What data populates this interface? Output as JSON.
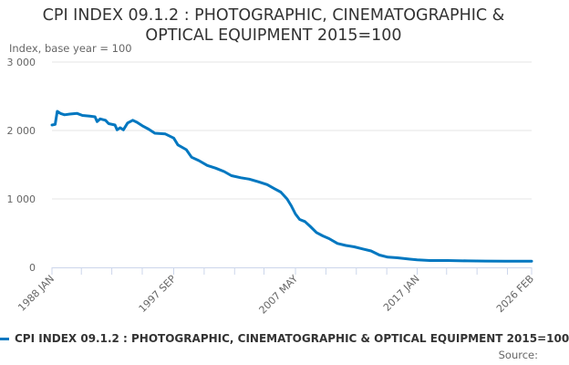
{
  "title_lines": [
    "CPI INDEX 09.1.2 : PHOTOGRAPHIC, CINEMATOGRAPHIC &",
    "OPTICAL EQUIPMENT 2015=100"
  ],
  "colors": {
    "series": "#0077c0",
    "gridline": "#e6e6e6",
    "axis": "#ccd6eb",
    "text": "#333333",
    "muted": "#666666"
  },
  "legend_label": "CPI INDEX 09.1.2 : PHOTOGRAPHIC, CINEMATOGRAPHIC & OPTICAL EQUIPMENT 2015=100",
  "source_label": "Source:",
  "chart_data": {
    "type": "line",
    "title": "CPI INDEX 09.1.2 : PHOTOGRAPHIC, CINEMATOGRAPHIC & OPTICAL EQUIPMENT 2015=100",
    "ylabel": "Index, base year = 100",
    "xlabel": "",
    "ylim": [
      0,
      3000
    ],
    "yticks": [
      0,
      1000,
      2000,
      3000
    ],
    "ytick_labels": [
      "0",
      "1 000",
      "2 000",
      "3 000"
    ],
    "xlim": [
      "1988-01",
      "2026-02"
    ],
    "xtick_labels": [
      "1988 JAN",
      "1997 SEP",
      "2007 MAY",
      "2017 JAN",
      "2026 FEB"
    ],
    "xtick_values": [
      "1988-01",
      "1997-09",
      "2007-05",
      "2017-01",
      "2026-02"
    ],
    "minor_tick_values": [
      "1988-01",
      "1990-05",
      "1992-10",
      "1995-03",
      "1997-09",
      "2000-02",
      "2002-07",
      "2004-11",
      "2007-05",
      "2009-10",
      "2012-03",
      "2014-08",
      "2017-01",
      "2019-05",
      "2021-10",
      "2024-03",
      "2026-02"
    ],
    "grid": true,
    "legend_position": "bottom",
    "series": [
      {
        "name": "CPI INDEX 09.1.2 : PHOTOGRAPHIC, CINEMATOGRAPHIC & OPTICAL EQUIPMENT 2015=100",
        "points": [
          [
            "1988-01",
            2080
          ],
          [
            "1988-04",
            2090
          ],
          [
            "1988-06",
            2280
          ],
          [
            "1988-09",
            2250
          ],
          [
            "1989-01",
            2230
          ],
          [
            "1989-06",
            2240
          ],
          [
            "1990-01",
            2250
          ],
          [
            "1990-06",
            2220
          ],
          [
            "1991-01",
            2210
          ],
          [
            "1991-06",
            2200
          ],
          [
            "1991-08",
            2130
          ],
          [
            "1991-11",
            2170
          ],
          [
            "1992-04",
            2150
          ],
          [
            "1992-07",
            2100
          ],
          [
            "1993-01",
            2080
          ],
          [
            "1993-03",
            2010
          ],
          [
            "1993-06",
            2040
          ],
          [
            "1993-09",
            2010
          ],
          [
            "1994-01",
            2110
          ],
          [
            "1994-06",
            2150
          ],
          [
            "1994-10",
            2120
          ],
          [
            "1995-03",
            2070
          ],
          [
            "1995-09",
            2020
          ],
          [
            "1996-03",
            1960
          ],
          [
            "1997-01",
            1950
          ],
          [
            "1997-09",
            1890
          ],
          [
            "1998-01",
            1790
          ],
          [
            "1998-09",
            1720
          ],
          [
            "1999-02",
            1610
          ],
          [
            "1999-09",
            1560
          ],
          [
            "2000-05",
            1490
          ],
          [
            "2001-01",
            1450
          ],
          [
            "2001-09",
            1400
          ],
          [
            "2002-04",
            1340
          ],
          [
            "2003-01",
            1310
          ],
          [
            "2003-09",
            1290
          ],
          [
            "2004-06",
            1250
          ],
          [
            "2005-02",
            1210
          ],
          [
            "2005-09",
            1150
          ],
          [
            "2006-03",
            1100
          ],
          [
            "2006-09",
            1000
          ],
          [
            "2007-01",
            900
          ],
          [
            "2007-05",
            780
          ],
          [
            "2007-09",
            700
          ],
          [
            "2008-02",
            670
          ],
          [
            "2008-07",
            600
          ],
          [
            "2009-01",
            510
          ],
          [
            "2009-07",
            460
          ],
          [
            "2010-01",
            420
          ],
          [
            "2010-09",
            350
          ],
          [
            "2011-05",
            320
          ],
          [
            "2012-01",
            300
          ],
          [
            "2012-09",
            270
          ],
          [
            "2013-05",
            240
          ],
          [
            "2014-01",
            180
          ],
          [
            "2014-09",
            150
          ],
          [
            "2015-06",
            140
          ],
          [
            "2016-06",
            120
          ],
          [
            "2017-01",
            110
          ],
          [
            "2018-01",
            100
          ],
          [
            "2019-06",
            100
          ],
          [
            "2021-01",
            95
          ],
          [
            "2022-06",
            92
          ],
          [
            "2024-01",
            90
          ],
          [
            "2026-02",
            90
          ]
        ]
      }
    ]
  }
}
